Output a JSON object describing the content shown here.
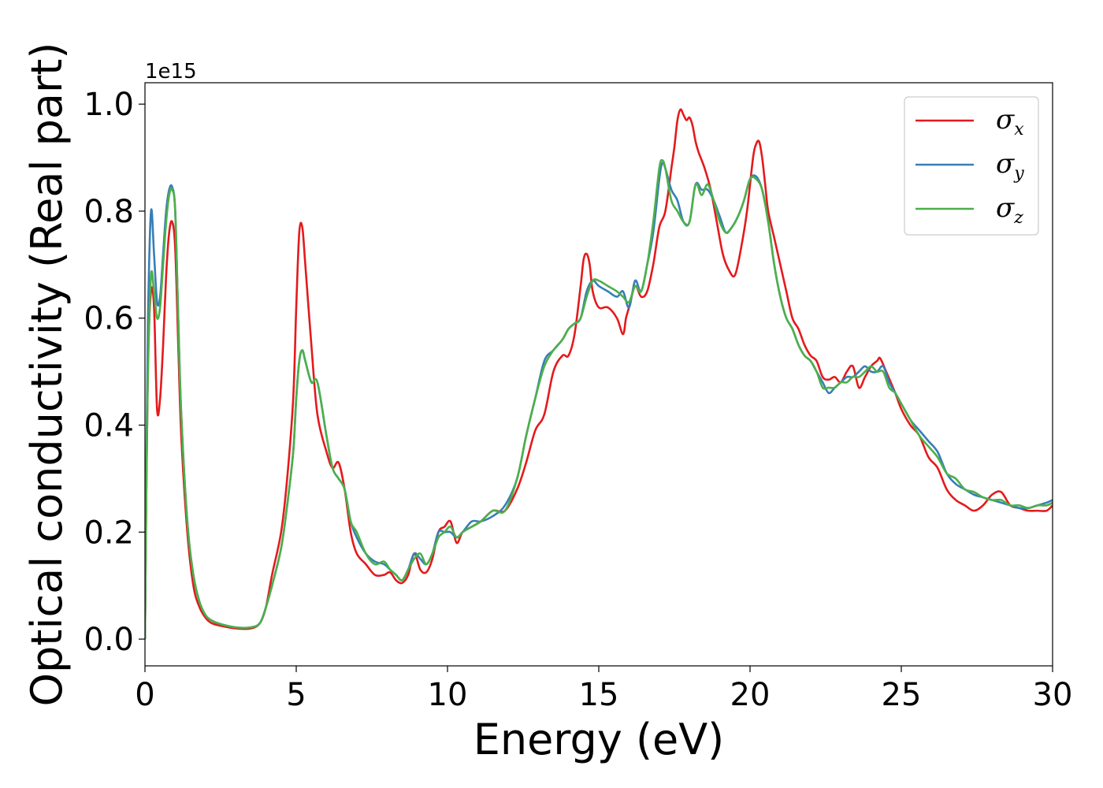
{
  "chart_data": {
    "type": "line",
    "xlabel": "Energy (eV)",
    "ylabel": "Optical conductivity (Real part)",
    "y_offset_text": "1e15",
    "xlim": [
      0,
      30
    ],
    "ylim": [
      -0.05,
      1.04
    ],
    "x_ticks": [
      0,
      5,
      10,
      15,
      20,
      25,
      30
    ],
    "x_tick_labels": [
      "0",
      "5",
      "10",
      "15",
      "20",
      "25",
      "30"
    ],
    "y_ticks": [
      0.0,
      0.2,
      0.4,
      0.6,
      0.8,
      1.0
    ],
    "y_tick_labels": [
      "0.0",
      "0.2",
      "0.4",
      "0.6",
      "0.8",
      "1.0"
    ],
    "grid": false,
    "legend_position": "top-right",
    "series": [
      {
        "name": "σ",
        "subscript": "x",
        "color": "#e41a1c",
        "x": [
          0,
          0.05,
          0.1,
          0.2,
          0.3,
          0.4,
          0.5,
          0.6,
          0.7,
          0.8,
          0.9,
          1.0,
          1.1,
          1.2,
          1.4,
          1.6,
          1.8,
          2.0,
          2.2,
          2.5,
          3.0,
          3.5,
          3.8,
          4.0,
          4.2,
          4.5,
          4.7,
          4.9,
          5.0,
          5.1,
          5.2,
          5.3,
          5.5,
          5.7,
          6.0,
          6.2,
          6.4,
          6.6,
          6.8,
          7.0,
          7.3,
          7.6,
          7.9,
          8.1,
          8.3,
          8.5,
          8.7,
          8.9,
          9.1,
          9.3,
          9.5,
          9.7,
          9.9,
          10.1,
          10.3,
          10.5,
          10.8,
          11.1,
          11.5,
          11.9,
          12.3,
          12.6,
          12.9,
          13.2,
          13.5,
          13.8,
          14.0,
          14.2,
          14.4,
          14.5,
          14.6,
          14.7,
          14.8,
          15.0,
          15.3,
          15.6,
          15.8,
          15.9,
          16.0,
          16.2,
          16.4,
          16.6,
          16.8,
          17.0,
          17.2,
          17.4,
          17.5,
          17.6,
          17.7,
          17.8,
          17.9,
          18.0,
          18.1,
          18.2,
          18.3,
          18.5,
          18.7,
          18.9,
          19.1,
          19.3,
          19.5,
          19.7,
          19.9,
          20.1,
          20.2,
          20.3,
          20.4,
          20.5,
          20.6,
          20.8,
          21.0,
          21.2,
          21.4,
          21.6,
          21.8,
          22.0,
          22.2,
          22.4,
          22.6,
          22.8,
          23.0,
          23.2,
          23.4,
          23.6,
          23.8,
          24.0,
          24.2,
          24.3,
          24.5,
          24.8,
          25.0,
          25.3,
          25.6,
          25.9,
          26.2,
          26.5,
          26.8,
          27.1,
          27.4,
          27.7,
          28.0,
          28.3,
          28.6,
          28.9,
          29.2,
          29.5,
          29.8,
          30.0
        ],
        "y": [
          0.0,
          0.3,
          0.52,
          0.65,
          0.62,
          0.43,
          0.45,
          0.55,
          0.68,
          0.76,
          0.78,
          0.73,
          0.55,
          0.38,
          0.2,
          0.1,
          0.06,
          0.04,
          0.03,
          0.025,
          0.02,
          0.02,
          0.03,
          0.06,
          0.12,
          0.2,
          0.3,
          0.45,
          0.62,
          0.76,
          0.77,
          0.7,
          0.55,
          0.42,
          0.35,
          0.32,
          0.33,
          0.28,
          0.2,
          0.16,
          0.14,
          0.12,
          0.12,
          0.125,
          0.11,
          0.105,
          0.12,
          0.16,
          0.13,
          0.125,
          0.15,
          0.2,
          0.21,
          0.22,
          0.18,
          0.2,
          0.21,
          0.22,
          0.24,
          0.24,
          0.28,
          0.33,
          0.39,
          0.42,
          0.5,
          0.53,
          0.53,
          0.57,
          0.66,
          0.71,
          0.72,
          0.7,
          0.65,
          0.62,
          0.62,
          0.6,
          0.57,
          0.6,
          0.62,
          0.66,
          0.64,
          0.65,
          0.7,
          0.77,
          0.8,
          0.88,
          0.92,
          0.97,
          0.99,
          0.98,
          0.97,
          0.975,
          0.96,
          0.93,
          0.91,
          0.88,
          0.84,
          0.78,
          0.72,
          0.69,
          0.68,
          0.73,
          0.8,
          0.9,
          0.925,
          0.93,
          0.9,
          0.85,
          0.8,
          0.75,
          0.7,
          0.65,
          0.6,
          0.58,
          0.55,
          0.53,
          0.52,
          0.49,
          0.485,
          0.49,
          0.48,
          0.5,
          0.51,
          0.47,
          0.49,
          0.51,
          0.52,
          0.525,
          0.5,
          0.46,
          0.43,
          0.4,
          0.38,
          0.34,
          0.32,
          0.28,
          0.26,
          0.25,
          0.24,
          0.25,
          0.27,
          0.275,
          0.25,
          0.245,
          0.24,
          0.24,
          0.24,
          0.25
        ]
      },
      {
        "name": "σ",
        "subscript": "y",
        "color": "#377eb8",
        "x": [
          0,
          0.05,
          0.1,
          0.2,
          0.3,
          0.4,
          0.5,
          0.6,
          0.7,
          0.8,
          0.9,
          1.0,
          1.1,
          1.2,
          1.4,
          1.6,
          1.8,
          2.0,
          2.2,
          2.5,
          3.0,
          3.5,
          3.8,
          4.0,
          4.2,
          4.5,
          4.7,
          4.9,
          5.0,
          5.1,
          5.2,
          5.3,
          5.5,
          5.7,
          6.0,
          6.2,
          6.4,
          6.6,
          6.8,
          7.0,
          7.3,
          7.6,
          7.9,
          8.1,
          8.3,
          8.5,
          8.7,
          8.9,
          9.1,
          9.3,
          9.5,
          9.7,
          9.9,
          10.1,
          10.3,
          10.5,
          10.8,
          11.1,
          11.5,
          11.9,
          12.3,
          12.6,
          12.9,
          13.2,
          13.5,
          13.8,
          14.0,
          14.2,
          14.4,
          14.6,
          14.8,
          15.0,
          15.3,
          15.6,
          15.8,
          16.0,
          16.2,
          16.4,
          16.6,
          16.8,
          17.0,
          17.1,
          17.2,
          17.4,
          17.6,
          17.8,
          18.0,
          18.2,
          18.4,
          18.6,
          18.8,
          19.0,
          19.2,
          19.4,
          19.6,
          19.8,
          20.0,
          20.2,
          20.4,
          20.6,
          20.8,
          21.0,
          21.2,
          21.4,
          21.6,
          21.8,
          22.0,
          22.2,
          22.4,
          22.6,
          22.8,
          23.0,
          23.2,
          23.4,
          23.6,
          23.8,
          24.0,
          24.2,
          24.4,
          24.6,
          24.8,
          25.0,
          25.3,
          25.6,
          25.9,
          26.2,
          26.5,
          26.8,
          27.1,
          27.4,
          27.7,
          28.0,
          28.3,
          28.6,
          28.9,
          29.2,
          29.5,
          29.8,
          30.0
        ],
        "y": [
          0.0,
          0.35,
          0.6,
          0.8,
          0.72,
          0.63,
          0.64,
          0.72,
          0.8,
          0.84,
          0.845,
          0.8,
          0.6,
          0.42,
          0.22,
          0.12,
          0.07,
          0.045,
          0.035,
          0.028,
          0.022,
          0.022,
          0.03,
          0.06,
          0.1,
          0.17,
          0.25,
          0.35,
          0.45,
          0.52,
          0.54,
          0.52,
          0.48,
          0.48,
          0.38,
          0.32,
          0.3,
          0.28,
          0.22,
          0.19,
          0.16,
          0.145,
          0.14,
          0.13,
          0.12,
          0.11,
          0.13,
          0.16,
          0.15,
          0.14,
          0.16,
          0.2,
          0.2,
          0.2,
          0.19,
          0.2,
          0.22,
          0.22,
          0.23,
          0.25,
          0.3,
          0.38,
          0.45,
          0.52,
          0.54,
          0.56,
          0.58,
          0.59,
          0.6,
          0.65,
          0.67,
          0.66,
          0.65,
          0.64,
          0.65,
          0.62,
          0.67,
          0.65,
          0.7,
          0.76,
          0.86,
          0.89,
          0.88,
          0.84,
          0.82,
          0.78,
          0.78,
          0.85,
          0.84,
          0.84,
          0.82,
          0.79,
          0.76,
          0.77,
          0.79,
          0.82,
          0.86,
          0.865,
          0.84,
          0.78,
          0.7,
          0.64,
          0.6,
          0.58,
          0.55,
          0.53,
          0.52,
          0.5,
          0.48,
          0.46,
          0.47,
          0.48,
          0.49,
          0.49,
          0.5,
          0.51,
          0.5,
          0.5,
          0.51,
          0.48,
          0.46,
          0.44,
          0.41,
          0.39,
          0.37,
          0.35,
          0.31,
          0.29,
          0.28,
          0.27,
          0.265,
          0.26,
          0.255,
          0.25,
          0.245,
          0.245,
          0.25,
          0.255,
          0.26
        ]
      },
      {
        "name": "σ",
        "subscript": "z",
        "color": "#4daf4a",
        "x": [
          0,
          0.05,
          0.1,
          0.2,
          0.3,
          0.4,
          0.5,
          0.6,
          0.7,
          0.8,
          0.9,
          1.0,
          1.1,
          1.2,
          1.4,
          1.6,
          1.8,
          2.0,
          2.2,
          2.5,
          3.0,
          3.5,
          3.8,
          4.0,
          4.2,
          4.5,
          4.7,
          4.9,
          5.0,
          5.1,
          5.2,
          5.3,
          5.5,
          5.7,
          6.0,
          6.2,
          6.4,
          6.6,
          6.8,
          7.0,
          7.3,
          7.6,
          7.9,
          8.1,
          8.3,
          8.5,
          8.7,
          8.9,
          9.1,
          9.3,
          9.5,
          9.7,
          9.9,
          10.1,
          10.3,
          10.5,
          10.8,
          11.1,
          11.5,
          11.9,
          12.3,
          12.6,
          12.9,
          13.2,
          13.5,
          13.8,
          14.0,
          14.2,
          14.4,
          14.6,
          14.8,
          15.0,
          15.3,
          15.6,
          15.8,
          16.0,
          16.2,
          16.4,
          16.6,
          16.8,
          17.0,
          17.1,
          17.2,
          17.4,
          17.6,
          17.8,
          18.0,
          18.2,
          18.4,
          18.6,
          18.8,
          19.0,
          19.2,
          19.4,
          19.6,
          19.8,
          20.0,
          20.2,
          20.4,
          20.6,
          20.8,
          21.0,
          21.2,
          21.4,
          21.6,
          21.8,
          22.0,
          22.2,
          22.4,
          22.6,
          22.8,
          23.0,
          23.2,
          23.4,
          23.6,
          23.8,
          24.0,
          24.2,
          24.4,
          24.6,
          24.8,
          25.0,
          25.3,
          25.6,
          25.9,
          26.2,
          26.5,
          26.8,
          27.1,
          27.4,
          27.7,
          28.0,
          28.3,
          28.6,
          28.9,
          29.2,
          29.5,
          29.8,
          30.0
        ],
        "y": [
          0.0,
          0.3,
          0.5,
          0.68,
          0.65,
          0.6,
          0.62,
          0.7,
          0.78,
          0.83,
          0.84,
          0.8,
          0.6,
          0.42,
          0.22,
          0.12,
          0.07,
          0.045,
          0.035,
          0.028,
          0.022,
          0.022,
          0.03,
          0.06,
          0.1,
          0.17,
          0.25,
          0.35,
          0.45,
          0.52,
          0.54,
          0.52,
          0.48,
          0.48,
          0.38,
          0.32,
          0.3,
          0.28,
          0.22,
          0.2,
          0.16,
          0.14,
          0.145,
          0.13,
          0.12,
          0.11,
          0.13,
          0.15,
          0.16,
          0.14,
          0.16,
          0.19,
          0.2,
          0.21,
          0.19,
          0.2,
          0.21,
          0.22,
          0.24,
          0.24,
          0.3,
          0.38,
          0.45,
          0.51,
          0.54,
          0.56,
          0.58,
          0.59,
          0.6,
          0.64,
          0.67,
          0.67,
          0.66,
          0.65,
          0.64,
          0.63,
          0.66,
          0.65,
          0.7,
          0.78,
          0.88,
          0.895,
          0.88,
          0.82,
          0.8,
          0.78,
          0.78,
          0.85,
          0.83,
          0.85,
          0.82,
          0.78,
          0.76,
          0.77,
          0.79,
          0.82,
          0.86,
          0.86,
          0.84,
          0.78,
          0.7,
          0.64,
          0.6,
          0.58,
          0.55,
          0.53,
          0.52,
          0.5,
          0.47,
          0.47,
          0.47,
          0.48,
          0.48,
          0.49,
          0.49,
          0.5,
          0.51,
          0.5,
          0.5,
          0.47,
          0.46,
          0.44,
          0.41,
          0.38,
          0.36,
          0.34,
          0.31,
          0.3,
          0.28,
          0.275,
          0.265,
          0.26,
          0.26,
          0.25,
          0.25,
          0.245,
          0.25,
          0.25,
          0.255
        ]
      }
    ]
  }
}
